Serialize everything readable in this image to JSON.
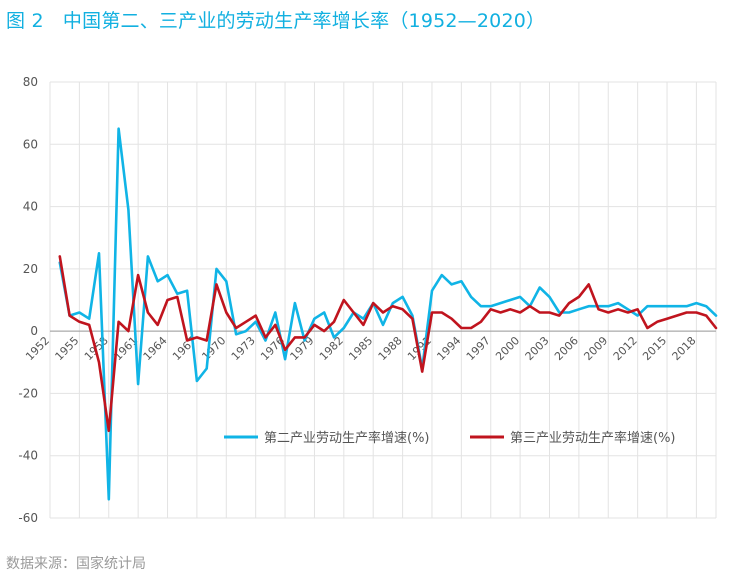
{
  "title": "图 2　中国第二、三产业的劳动生产率增长率（1952—2020）",
  "source": "数据来源：国家统计局",
  "colors": {
    "series1": "#10b4e6",
    "series2": "#c0141e",
    "title": "#12b0e0",
    "grid": "#e3e3e3"
  },
  "chart_data": {
    "type": "line",
    "title": "",
    "xlabel": "",
    "ylabel": "",
    "ylim": [
      -60,
      80
    ],
    "yticks": [
      -60,
      -40,
      -20,
      0,
      20,
      40,
      60,
      80
    ],
    "xlim": [
      1952,
      2020
    ],
    "xticks": [
      1952,
      1955,
      1958,
      1961,
      1964,
      1967,
      1970,
      1973,
      1976,
      1979,
      1982,
      1985,
      1988,
      1991,
      1994,
      1997,
      2000,
      2003,
      2006,
      2009,
      2012,
      2015,
      2018
    ],
    "grid": true,
    "legend_position": "bottom-right",
    "x": [
      1953,
      1954,
      1955,
      1956,
      1957,
      1958,
      1959,
      1960,
      1961,
      1962,
      1963,
      1964,
      1965,
      1966,
      1967,
      1968,
      1969,
      1970,
      1971,
      1972,
      1973,
      1974,
      1975,
      1976,
      1977,
      1978,
      1979,
      1980,
      1981,
      1982,
      1983,
      1984,
      1985,
      1986,
      1987,
      1988,
      1989,
      1990,
      1991,
      1992,
      1993,
      1994,
      1995,
      1996,
      1997,
      1998,
      1999,
      2000,
      2001,
      2002,
      2003,
      2004,
      2005,
      2006,
      2007,
      2008,
      2009,
      2010,
      2011,
      2012,
      2013,
      2014,
      2015,
      2016,
      2017,
      2018,
      2019,
      2020
    ],
    "series": [
      {
        "name": "第二产业劳动生产率增速(%)",
        "color": "#10b4e6",
        "values": [
          22,
          5,
          6,
          4,
          25,
          -54,
          65,
          39,
          -17,
          24,
          16,
          18,
          12,
          13,
          -16,
          -12,
          20,
          16,
          -1,
          0,
          3,
          -3,
          6,
          -9,
          9,
          -3,
          4,
          6,
          -2,
          1,
          6,
          4,
          9,
          2,
          9,
          11,
          5,
          -12,
          13,
          18,
          15,
          16,
          11,
          8,
          8,
          9,
          10,
          11,
          8,
          14,
          11,
          6,
          6,
          7,
          8,
          8,
          8,
          9,
          7,
          5,
          8,
          8,
          8,
          8,
          8,
          9,
          8,
          5
        ]
      },
      {
        "name": "第三产业劳动生产率增速(%)",
        "color": "#c0141e",
        "values": [
          24,
          5,
          3,
          2,
          -10,
          -32,
          3,
          0,
          18,
          6,
          2,
          10,
          11,
          -3,
          -2,
          -3,
          15,
          6,
          1,
          3,
          5,
          -2,
          2,
          -6,
          -2,
          -2,
          2,
          0,
          3,
          10,
          6,
          2,
          9,
          6,
          8,
          7,
          4,
          -13,
          6,
          6,
          4,
          1,
          1,
          3,
          7,
          6,
          7,
          6,
          8,
          6,
          6,
          5,
          9,
          11,
          15,
          7,
          6,
          7,
          6,
          7,
          1,
          3,
          4,
          5,
          6,
          6,
          5,
          1
        ]
      }
    ]
  }
}
